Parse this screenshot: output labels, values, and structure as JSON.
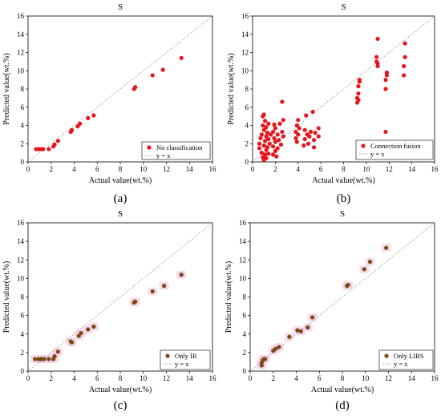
{
  "chart_data": [
    {
      "type": "scatter",
      "panel_label": "(a)",
      "title": "S",
      "xlabel": "Actual value(wt.%)",
      "ylabel": "Predicted value(wt.%)",
      "xlim": [
        0,
        16
      ],
      "ylim": [
        0,
        16
      ],
      "xticks": [
        "0",
        "2",
        "4",
        "6",
        "8",
        "10",
        "12",
        "14",
        "16"
      ],
      "yticks": [
        "0",
        "2",
        "4",
        "6",
        "8",
        "10",
        "12",
        "14",
        "16"
      ],
      "grid": false,
      "legend_position": "bottom-right",
      "series": [
        {
          "name": "No classification",
          "color": "#e8141c",
          "halo": false,
          "points": [
            [
              0.7,
              1.4
            ],
            [
              0.9,
              1.4
            ],
            [
              1.0,
              1.4
            ],
            [
              1.2,
              1.4
            ],
            [
              1.3,
              1.4
            ],
            [
              1.8,
              1.4
            ],
            [
              2.2,
              1.7
            ],
            [
              2.3,
              1.9
            ],
            [
              2.6,
              2.3
            ],
            [
              3.7,
              3.3
            ],
            [
              3.8,
              3.5
            ],
            [
              4.3,
              3.9
            ],
            [
              4.5,
              4.2
            ],
            [
              5.2,
              4.8
            ],
            [
              5.7,
              5.1
            ],
            [
              9.2,
              8.0
            ],
            [
              9.3,
              8.2
            ],
            [
              10.8,
              9.5
            ],
            [
              11.7,
              10.1
            ],
            [
              13.3,
              11.4
            ]
          ]
        },
        {
          "name": "y = x",
          "line": "dotted",
          "color": "#888888",
          "points": [
            [
              0,
              0
            ],
            [
              16,
              16
            ]
          ]
        }
      ]
    },
    {
      "type": "scatter",
      "panel_label": "(b)",
      "title": "S",
      "xlabel": "Actual value(wt.%)",
      "ylabel": "Predicted value(wt.%)",
      "xlim": [
        0,
        16
      ],
      "ylim": [
        0,
        16
      ],
      "xticks": [
        "0",
        "2",
        "4",
        "6",
        "8",
        "10",
        "12",
        "14",
        "16"
      ],
      "yticks": [
        "0",
        "2",
        "4",
        "6",
        "8",
        "10",
        "12",
        "14",
        "16"
      ],
      "grid": false,
      "legend_position": "bottom-right",
      "series": [
        {
          "name": "Connection fusion",
          "color": "#e8141c",
          "halo": false,
          "points": [
            [
              0.6,
              1.5
            ],
            [
              0.6,
              2.0
            ],
            [
              0.7,
              2.6
            ],
            [
              0.8,
              1.0
            ],
            [
              0.8,
              3.0
            ],
            [
              0.9,
              0.5
            ],
            [
              0.9,
              4.0
            ],
            [
              0.9,
              5.0
            ],
            [
              1.0,
              0.2
            ],
            [
              1.0,
              1.8
            ],
            [
              1.0,
              3.5
            ],
            [
              1.0,
              5.2
            ],
            [
              1.1,
              0.8
            ],
            [
              1.1,
              2.3
            ],
            [
              1.1,
              4.5
            ],
            [
              1.2,
              0.4
            ],
            [
              1.2,
              1.3
            ],
            [
              1.2,
              2.8
            ],
            [
              1.2,
              3.8
            ],
            [
              1.3,
              1.6
            ],
            [
              1.3,
              3.2
            ],
            [
              1.4,
              0.9
            ],
            [
              1.4,
              2.5
            ],
            [
              1.4,
              4.2
            ],
            [
              1.5,
              2.0
            ],
            [
              1.6,
              3.0
            ],
            [
              1.8,
              0.8
            ],
            [
              1.8,
              1.7
            ],
            [
              1.8,
              3.3
            ],
            [
              1.9,
              2.6
            ],
            [
              1.9,
              4.1
            ],
            [
              2.0,
              1.2
            ],
            [
              2.0,
              2.2
            ],
            [
              2.0,
              3.7
            ],
            [
              2.1,
              0.6
            ],
            [
              2.2,
              1.5
            ],
            [
              2.2,
              3.0
            ],
            [
              2.3,
              2.4
            ],
            [
              2.4,
              4.2
            ],
            [
              2.5,
              1.9
            ],
            [
              2.6,
              3.3
            ],
            [
              2.6,
              6.6
            ],
            [
              2.7,
              2.8
            ],
            [
              2.7,
              4.6
            ],
            [
              3.8,
              2.6
            ],
            [
              3.8,
              3.3
            ],
            [
              3.9,
              2.2
            ],
            [
              3.9,
              4.0
            ],
            [
              4.0,
              3.0
            ],
            [
              4.0,
              4.6
            ],
            [
              4.1,
              3.7
            ],
            [
              4.5,
              1.8
            ],
            [
              4.6,
              2.5
            ],
            [
              4.6,
              3.5
            ],
            [
              4.7,
              5.1
            ],
            [
              4.8,
              3.0
            ],
            [
              4.9,
              2.0
            ],
            [
              5.0,
              2.8
            ],
            [
              5.1,
              3.3
            ],
            [
              5.3,
              5.5
            ],
            [
              5.4,
              1.6
            ],
            [
              5.4,
              2.4
            ],
            [
              5.5,
              3.2
            ],
            [
              5.8,
              2.8
            ],
            [
              5.8,
              3.7
            ],
            [
              9.2,
              6.5
            ],
            [
              9.2,
              7.0
            ],
            [
              9.3,
              7.5
            ],
            [
              9.3,
              8.3
            ],
            [
              9.4,
              8.8
            ],
            [
              9.4,
              9.0
            ],
            [
              9.3,
              6.8
            ],
            [
              10.9,
              11.0
            ],
            [
              10.9,
              11.5
            ],
            [
              11.0,
              13.5
            ],
            [
              11.0,
              10.5
            ],
            [
              11.0,
              10.8
            ],
            [
              11.7,
              3.3
            ],
            [
              11.7,
              8.0
            ],
            [
              11.7,
              9.0
            ],
            [
              11.8,
              9.8
            ],
            [
              11.8,
              9.5
            ],
            [
              13.3,
              9.5
            ],
            [
              13.3,
              10.5
            ],
            [
              13.4,
              11.5
            ],
            [
              13.4,
              13.0
            ]
          ]
        },
        {
          "name": "y = x",
          "line": "dotted",
          "color": "#888888",
          "points": [
            [
              0,
              0
            ],
            [
              16,
              16
            ]
          ]
        }
      ]
    },
    {
      "type": "scatter",
      "panel_label": "(c)",
      "title": "S",
      "xlabel": "Actual value(wt.%)",
      "ylabel": "Predicted value(wt.%)",
      "xlim": [
        0,
        16
      ],
      "ylim": [
        0,
        16
      ],
      "xticks": [
        "0",
        "2",
        "4",
        "6",
        "8",
        "10",
        "12",
        "14",
        "16"
      ],
      "yticks": [
        "0",
        "2",
        "4",
        "6",
        "8",
        "10",
        "12",
        "14",
        "16"
      ],
      "grid": false,
      "legend_position": "bottom-right",
      "series": [
        {
          "name": "Only IR",
          "color": "#7b4a12",
          "halo": true,
          "halo_color": "#f3cfe8",
          "points": [
            [
              0.6,
              1.3
            ],
            [
              0.9,
              1.3
            ],
            [
              1.1,
              1.3
            ],
            [
              1.2,
              1.3
            ],
            [
              1.4,
              1.3
            ],
            [
              1.8,
              1.3
            ],
            [
              2.2,
              1.3
            ],
            [
              2.3,
              1.6
            ],
            [
              2.6,
              2.1
            ],
            [
              3.7,
              3.2
            ],
            [
              3.8,
              3.1
            ],
            [
              4.4,
              3.8
            ],
            [
              4.6,
              4.1
            ],
            [
              5.2,
              4.5
            ],
            [
              5.7,
              4.8
            ],
            [
              9.2,
              7.4
            ],
            [
              9.3,
              7.5
            ],
            [
              10.8,
              8.6
            ],
            [
              11.8,
              9.2
            ],
            [
              13.3,
              10.4
            ]
          ]
        },
        {
          "name": "y = x",
          "line": "dotted",
          "color": "#888888",
          "points": [
            [
              0,
              0
            ],
            [
              16,
              16
            ]
          ]
        }
      ]
    },
    {
      "type": "scatter",
      "panel_label": "(d)",
      "title": "S",
      "xlabel": "Actual value(wt.%)",
      "ylabel": "Predicted value(wt.%)",
      "xlim": [
        0,
        16
      ],
      "ylim": [
        0,
        16
      ],
      "xticks": [
        "0",
        "2",
        "4",
        "6",
        "8",
        "10",
        "12",
        "14",
        "16"
      ],
      "yticks": [
        "0",
        "2",
        "4",
        "6",
        "8",
        "10",
        "12",
        "14",
        "16"
      ],
      "grid": false,
      "legend_position": "bottom-right",
      "series": [
        {
          "name": "Only LIBS",
          "color": "#7b4a12",
          "halo": true,
          "halo_color": "#f3cfe8",
          "points": [
            [
              1.0,
              0.6
            ],
            [
              1.0,
              0.9
            ],
            [
              1.1,
              1.2
            ],
            [
              1.2,
              1.3
            ],
            [
              1.3,
              1.3
            ],
            [
              2.0,
              2.2
            ],
            [
              2.2,
              2.4
            ],
            [
              2.5,
              2.6
            ],
            [
              3.4,
              3.7
            ],
            [
              4.1,
              4.4
            ],
            [
              4.4,
              4.3
            ],
            [
              5.0,
              4.7
            ],
            [
              5.4,
              5.8
            ],
            [
              8.4,
              9.2
            ],
            [
              8.5,
              9.3
            ],
            [
              9.9,
              11.0
            ],
            [
              10.4,
              11.8
            ],
            [
              11.8,
              13.3
            ]
          ]
        },
        {
          "name": "y = x",
          "line": "dotted",
          "color": "#888888",
          "points": [
            [
              0,
              0
            ],
            [
              16,
              16
            ]
          ]
        }
      ]
    }
  ]
}
